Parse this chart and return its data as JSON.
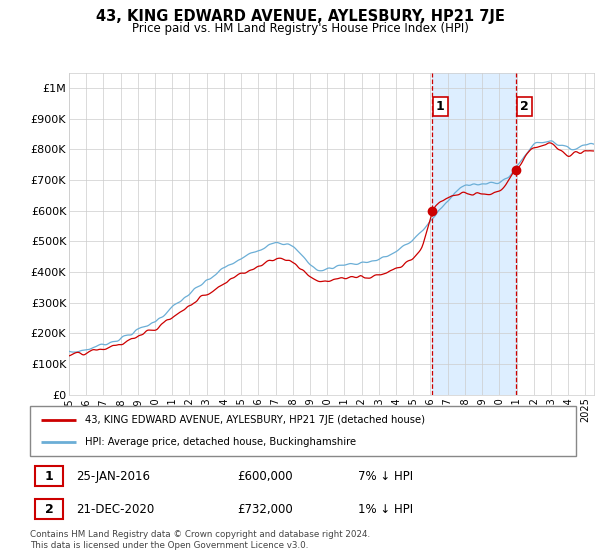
{
  "title": "43, KING EDWARD AVENUE, AYLESBURY, HP21 7JE",
  "subtitle": "Price paid vs. HM Land Registry's House Price Index (HPI)",
  "ylabel_ticks": [
    "£0",
    "£100K",
    "£200K",
    "£300K",
    "£400K",
    "£500K",
    "£600K",
    "£700K",
    "£800K",
    "£900K",
    "£1M"
  ],
  "ytick_values": [
    0,
    100000,
    200000,
    300000,
    400000,
    500000,
    600000,
    700000,
    800000,
    900000,
    1000000
  ],
  "ylim": [
    0,
    1050000
  ],
  "xlim_start": 1995,
  "xlim_end": 2025.5,
  "transaction1": {
    "date_x": 2016.07,
    "price": 600000,
    "label": "1",
    "pct": "7% ↓ HPI",
    "date_str": "25-JAN-2016",
    "price_str": "£600,000"
  },
  "transaction2": {
    "date_x": 2020.97,
    "price": 732000,
    "label": "2",
    "pct": "1% ↓ HPI",
    "date_str": "21-DEC-2020",
    "price_str": "£732,000"
  },
  "legend_label1": "43, KING EDWARD AVENUE, AYLESBURY, HP21 7JE (detached house)",
  "legend_label2": "HPI: Average price, detached house, Buckinghamshire",
  "footnote": "Contains HM Land Registry data © Crown copyright and database right 2024.\nThis data is licensed under the Open Government Licence v3.0.",
  "hpi_color": "#6BAED6",
  "price_color": "#CC0000",
  "marker_color": "#CC0000",
  "vline_color": "#CC0000",
  "shade_color": "#DDEEFF",
  "bg_color": "#FFFFFF",
  "grid_color": "#CCCCCC",
  "label_box_color": "#CC0000"
}
